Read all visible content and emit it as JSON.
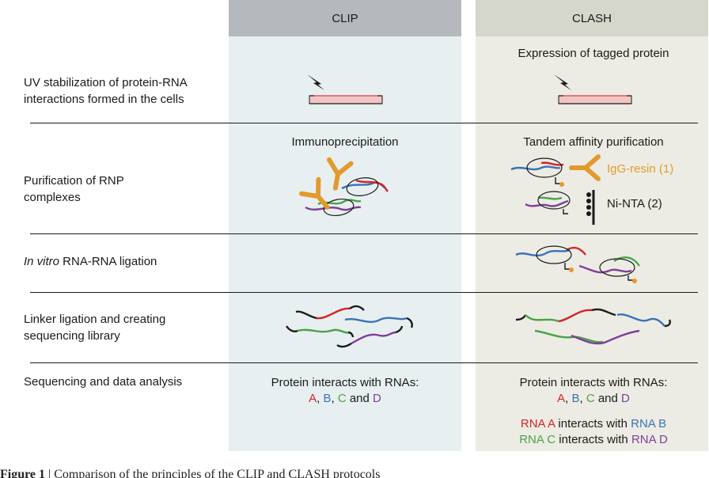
{
  "columns": {
    "clip": "CLIP",
    "clash": "CLASH"
  },
  "steps": [
    {
      "line1": "UV stabilization of protein-RNA",
      "line2": "interactions formed in the cells"
    },
    {
      "line1": "Purification of RNP",
      "line2": "complexes"
    },
    {
      "italic": "In vitro",
      "rest": " RNA-RNA ligation"
    },
    {
      "line1": "Linker ligation and creating",
      "line2": "sequencing library"
    },
    {
      "line1": "Sequencing and data analysis"
    }
  ],
  "clash_expression": "Expression of tagged protein",
  "clip_purification": "Immunoprecipitation",
  "clash_purification": "Tandem affinity purification",
  "clash_tags": {
    "igg": "IgG-resin (1)",
    "ni": "Ni-NTA (2)"
  },
  "results": {
    "intro": "Protein interacts with RNAs:",
    "a": "A",
    "b": "B",
    "c": "C",
    "d": "D",
    "comma": ", ",
    "and": " and ",
    "rna_a": "RNA A",
    "rna_b": "RNA B",
    "rna_c": "RNA C",
    "rna_d": "RNA D",
    "interacts": " interacts with "
  },
  "caption": {
    "label": "Figure 1",
    "bar": " | ",
    "text": "Comparison of the principles of the CLIP and CLASH protocols"
  },
  "colors": {
    "rna_a": "#d4242a",
    "rna_b": "#3b72b8",
    "rna_c": "#4aa24a",
    "rna_d": "#7e3f98",
    "tag": "#e39a2c"
  }
}
